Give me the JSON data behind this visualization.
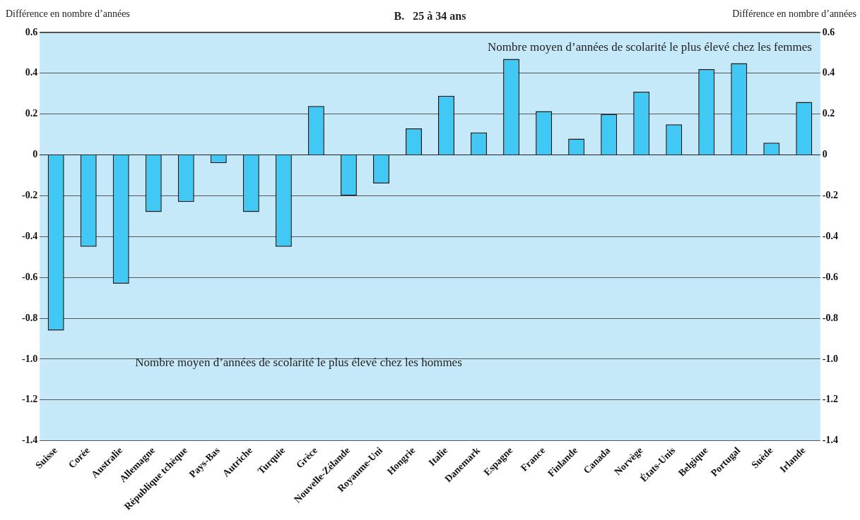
{
  "chart_data": {
    "type": "bar",
    "title": "B.   25 à 34 ans",
    "ylabel": "Différence en nombre d’années",
    "y2label": "Différence en nombre d’années",
    "categories": [
      "Suisse",
      "Corée",
      "Australie",
      "Allemagne",
      "République tchèque",
      "Pays-Bas",
      "Autriche",
      "Turquie",
      "Grèce",
      "Nouvelle-Zélande",
      "Royaume-Uni",
      "Hongrie",
      "Italie",
      "Danemark",
      "Espagne",
      "France",
      "Finlande",
      "Canada",
      "Norvège",
      "États-Unis",
      "Belgique",
      "Portugal",
      "Suède",
      "Irlande"
    ],
    "values": [
      -0.86,
      -0.45,
      -0.63,
      -0.28,
      -0.23,
      -0.04,
      -0.28,
      -0.45,
      0.24,
      -0.2,
      -0.14,
      0.13,
      0.29,
      0.11,
      0.47,
      0.215,
      0.08,
      0.2,
      0.31,
      0.15,
      0.42,
      0.45,
      0.06,
      0.26
    ],
    "color": "#41c8f4",
    "ylim": [
      -1.4,
      0.6
    ],
    "yticks": [
      {
        "value": -1.4,
        "label": "-1.4"
      },
      {
        "value": -1.2,
        "label": "-1.2"
      },
      {
        "value": -1,
        "label": "-1.0"
      },
      {
        "value": -0.8,
        "label": "-0.8"
      },
      {
        "value": -0.6,
        "label": "-0.6"
      },
      {
        "value": -0.4,
        "label": "-0.4"
      },
      {
        "value": -0.2,
        "label": "-0.2"
      },
      0,
      0.2,
      0.4,
      0.6
    ],
    "y2lim": [
      -1.4,
      0.6
    ],
    "y2ticks": [
      {
        "value": -1.4,
        "label": "-1.4"
      },
      {
        "value": -1.2,
        "label": "-1.2"
      },
      {
        "value": -1,
        "label": "-1.0"
      },
      {
        "value": -0.8,
        "label": "-0.8"
      },
      {
        "value": -0.6,
        "label": "-0.6"
      },
      {
        "value": -0.4,
        "label": "-0.4"
      },
      {
        "value": -0.2,
        "label": "-0.2"
      },
      0,
      0.2,
      0.4,
      0.6
    ],
    "grid": "y",
    "legend": false,
    "annotations": [
      "Nombre moyen d’années de scolarité le plus élevé chez les femmes",
      "Nombre moyen d’années de scolarité le plus élevé chez les hommes"
    ]
  }
}
